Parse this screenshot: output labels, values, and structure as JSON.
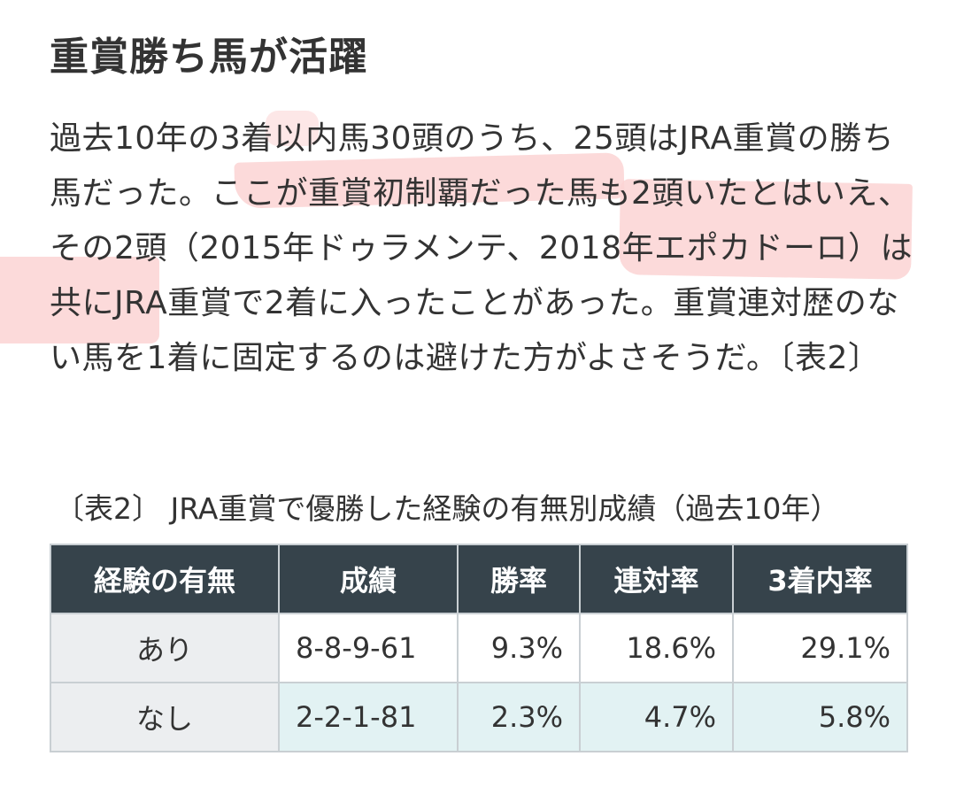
{
  "article": {
    "heading": "重賞勝ち馬が活躍",
    "paragraph": "過去10年の3着以内馬30頭のうち、25頭はJRA重賞の勝ち馬だった。ここが重賞初制覇だった馬も2頭いたとはいえ、その2頭（2015年ドゥラメンテ、2018年エポカドーロ）は共にJRA重賞で2着に入ったことがあった。重賞連対歴のない馬を1着に固定するのは避けた方がよさそうだ。〔表2〕"
  },
  "table": {
    "caption": "〔表2〕 JRA重賞で優勝した経験の有無別成績（過去10年）",
    "headers": [
      "経験の有無",
      "成績",
      "勝率",
      "連対率",
      "3着内率"
    ],
    "rows": [
      [
        "あり",
        "8-8-9-61",
        "9.3%",
        "18.6%",
        "29.1%"
      ],
      [
        "なし",
        "2-2-1-81",
        "2.3%",
        "4.7%",
        "5.8%"
      ]
    ]
  },
  "colors": {
    "header_bg": "#36434b",
    "row_label_bg": "#eceef0",
    "row2_bg": "#e2f2f3",
    "highlight": "#fbd3d3"
  }
}
